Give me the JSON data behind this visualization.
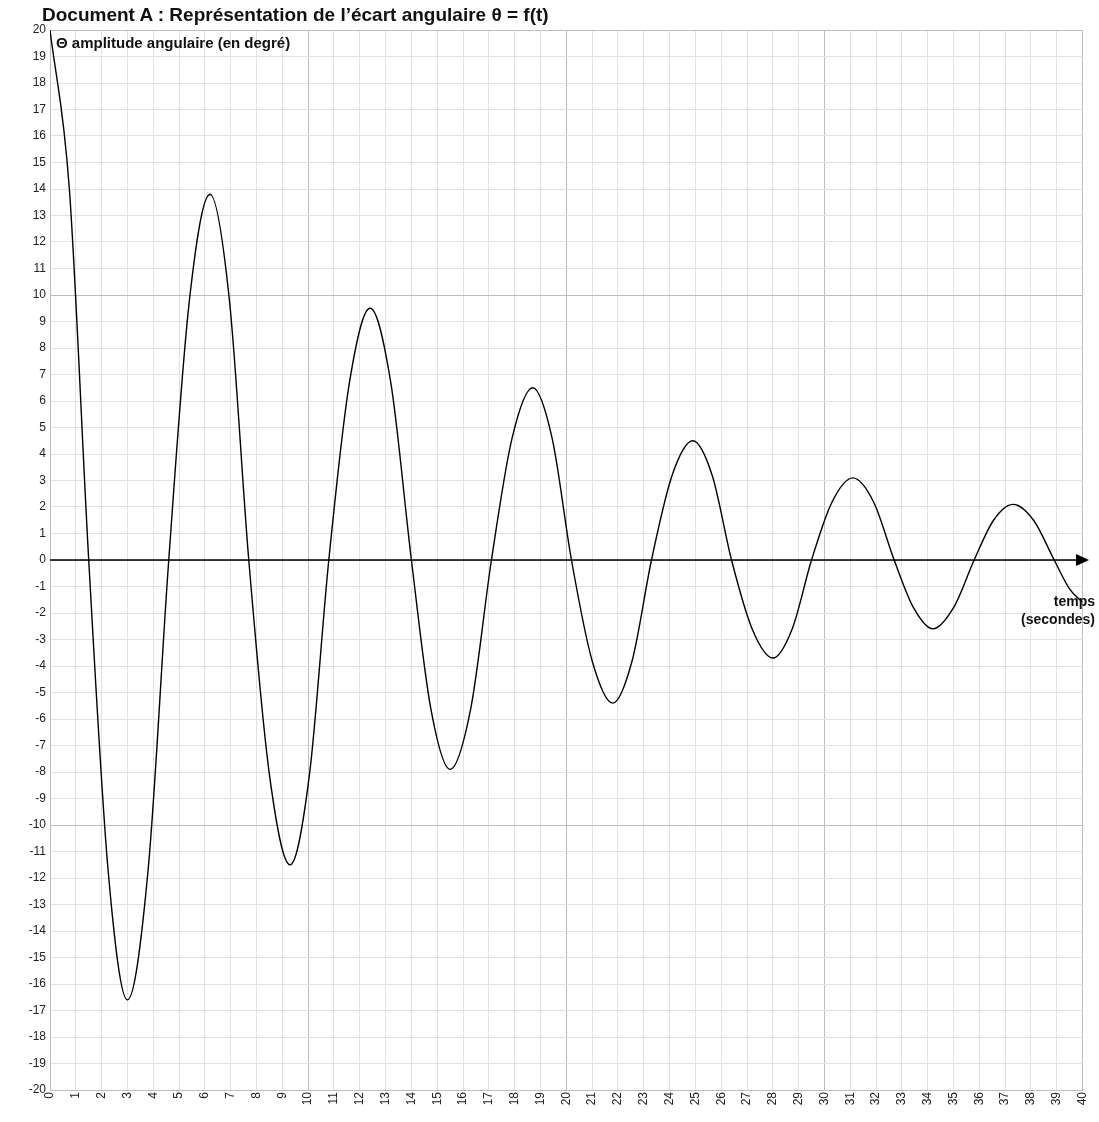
{
  "chart_data": {
    "type": "line",
    "title": "Document A : Représentation de l’écart angulaire θ = f(t)",
    "ylabel": "Θ amplitude angulaire (en degré)",
    "xlabel": "temps (secondes)",
    "x": [
      0,
      0.75,
      1.5,
      2.25,
      3.0,
      3.8,
      4.6,
      5.4,
      6.2,
      6.95,
      7.7,
      8.5,
      9.3,
      10.05,
      10.8,
      11.6,
      12.4,
      13.2,
      14.0,
      14.75,
      15.5,
      16.3,
      17.1,
      17.9,
      18.7,
      19.45,
      20.2,
      21.0,
      21.8,
      22.55,
      23.3,
      24.1,
      24.9,
      25.65,
      26.4,
      27.2,
      28.0,
      28.75,
      29.5,
      30.3,
      31.1,
      31.9,
      32.7,
      33.45,
      34.2,
      35.0,
      35.8,
      36.55,
      37.3,
      38.1,
      38.9,
      39.5,
      40
    ],
    "series": [
      {
        "color": "#000000",
        "values": [
          20,
          14,
          0,
          -11.7,
          -16.6,
          -11.7,
          0,
          9.8,
          13.8,
          9.8,
          0,
          -8.1,
          -11.5,
          -8.1,
          0,
          6.7,
          9.5,
          6.7,
          0,
          -5.6,
          -7.9,
          -5.6,
          0,
          4.6,
          6.5,
          4.6,
          0,
          -3.8,
          -5.4,
          -3.8,
          0,
          3.2,
          4.5,
          3.2,
          0,
          -2.6,
          -3.7,
          -2.6,
          0,
          2.2,
          3.1,
          2.2,
          0,
          -1.8,
          -2.6,
          -1.8,
          0,
          1.5,
          2.1,
          1.5,
          0,
          -1.1,
          -1.6
        ]
      }
    ],
    "xlim": [
      0,
      40
    ],
    "xticks": [
      0,
      1,
      2,
      3,
      4,
      5,
      6,
      7,
      8,
      9,
      10,
      11,
      12,
      13,
      14,
      15,
      16,
      17,
      18,
      19,
      20,
      21,
      22,
      23,
      24,
      25,
      26,
      27,
      28,
      29,
      30,
      31,
      32,
      33,
      34,
      35,
      36,
      37,
      38,
      39,
      40
    ],
    "ylim": [
      -20,
      20
    ],
    "yticks": [
      -20,
      -19,
      -18,
      -17,
      -16,
      -15,
      -14,
      -13,
      -12,
      -11,
      -10,
      -9,
      -8,
      -7,
      -6,
      -5,
      -4,
      -3,
      -2,
      -1,
      0,
      1,
      2,
      3,
      4,
      5,
      6,
      7,
      8,
      9,
      10,
      11,
      12,
      13,
      14,
      15,
      16,
      17,
      18,
      19,
      20
    ],
    "ref_lines": [
      {
        "axis": "y",
        "value": 0,
        "color": "#000000"
      }
    ],
    "grid": true,
    "legend": false,
    "marker": "none",
    "line_style": "solid"
  }
}
